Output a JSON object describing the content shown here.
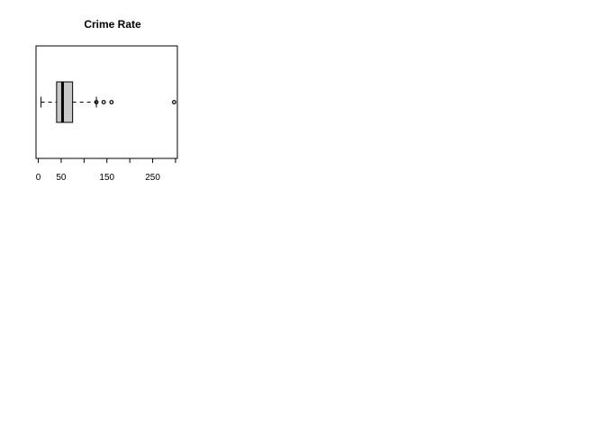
{
  "chart_data": {
    "type": "boxplot",
    "orientation": "horizontal",
    "title": "Crime Rate",
    "xlabel": "",
    "ylabel": "",
    "xlim": [
      -5,
      304
    ],
    "ticks": [
      0,
      50,
      100,
      150,
      200,
      250,
      300
    ],
    "tick_labels": [
      "0",
      "50",
      "",
      "150",
      "",
      "250",
      ""
    ],
    "box": {
      "whisker_low": 6,
      "q1": 40,
      "median": 53,
      "q3": 75,
      "whisker_high": 127
    },
    "outliers": [
      127,
      143,
      160,
      297
    ],
    "box_fill": "#c8c8c8",
    "grid": false,
    "legend": "none"
  }
}
